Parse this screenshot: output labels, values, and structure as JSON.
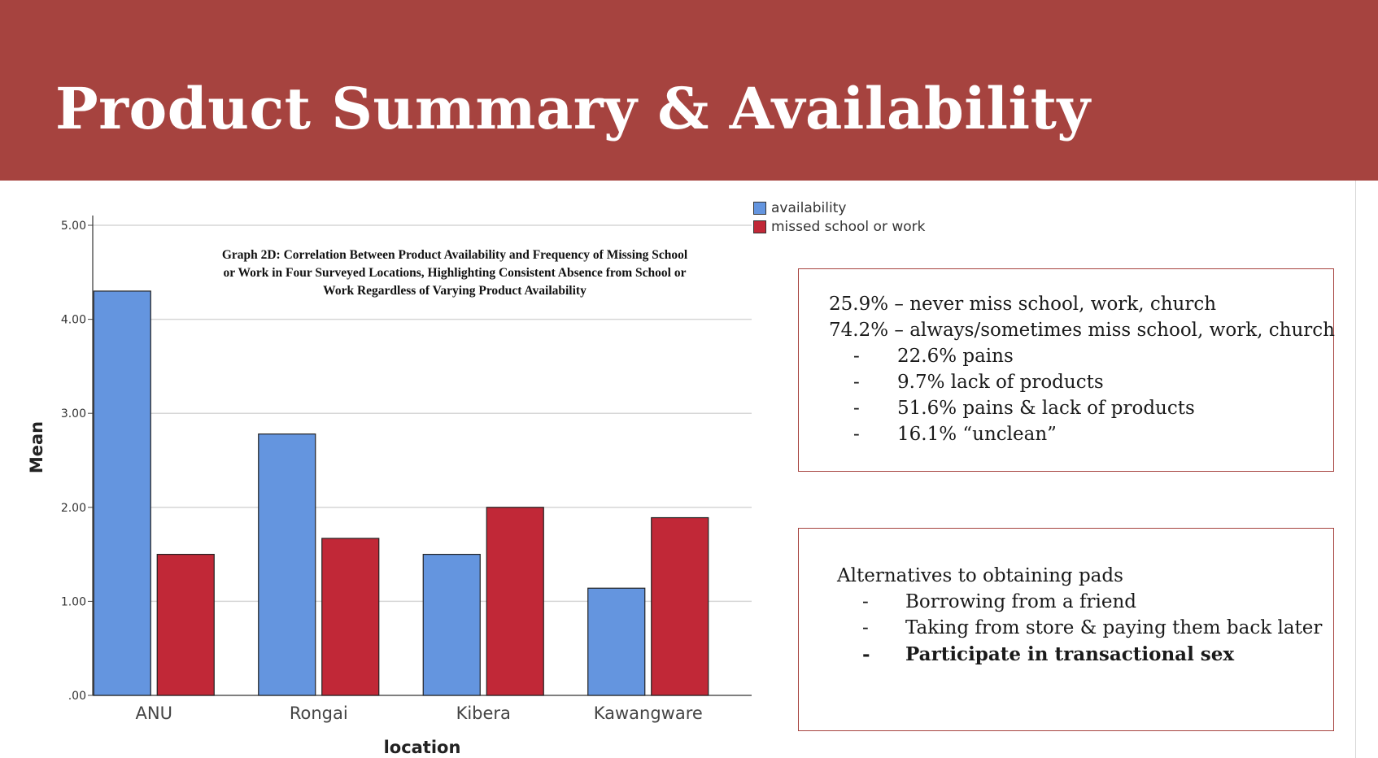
{
  "header": {
    "title": "Product Summary & Availability"
  },
  "colors": {
    "banner": "#a6433f",
    "availability": "#6495df",
    "missed": "#c12837"
  },
  "chart_data": {
    "type": "bar",
    "title": "Graph 2D: Correlation Between Product Availability and Frequency of Missing School or Work in Four Surveyed Locations, Highlighting Consistent Absence from School or Work Regardless of Varying Product Availability",
    "title_lines": [
      "Graph 2D: Correlation Between Product Availability and Frequency of Missing School",
      "or Work in Four Surveyed Locations, Highlighting Consistent Absence from School or",
      "Work Regardless of Varying Product Availability"
    ],
    "xlabel": "location",
    "ylabel": "Mean",
    "categories": [
      "ANU",
      "Rongai",
      "Kibera",
      "Kawangware"
    ],
    "series": [
      {
        "name": "availability",
        "values": [
          4.3,
          2.78,
          1.5,
          1.14
        ]
      },
      {
        "name": "missed school or work",
        "values": [
          1.5,
          1.67,
          2.0,
          1.89
        ]
      }
    ],
    "ylim": [
      0,
      5.2
    ],
    "yticks": [
      0,
      1,
      2,
      3,
      4,
      5
    ],
    "ytick_labels": [
      ".00",
      "1.00",
      "2.00",
      "3.00",
      "4.00",
      "5.00"
    ],
    "grid": true,
    "legend_position": "top-right"
  },
  "summary_box": {
    "lines": [
      "25.9% – never miss school, work, church",
      "74.2% – always/sometimes miss school, work, church"
    ],
    "bullets": [
      {
        "dash": "-",
        "text": "22.6% pains"
      },
      {
        "dash": "-",
        "text": "9.7% lack of products"
      },
      {
        "dash": "-",
        "text": "51.6% pains & lack of products"
      },
      {
        "dash": "-",
        "text": "16.1% “unclean”"
      }
    ]
  },
  "alternatives_box": {
    "heading": "Alternatives to obtaining pads",
    "bullets": [
      {
        "dash": "-",
        "text": "Borrowing from a friend"
      },
      {
        "dash": "-",
        "text": "Taking from store & paying them back later"
      },
      {
        "dash": "-",
        "text": "Participate in transactional sex"
      }
    ]
  }
}
